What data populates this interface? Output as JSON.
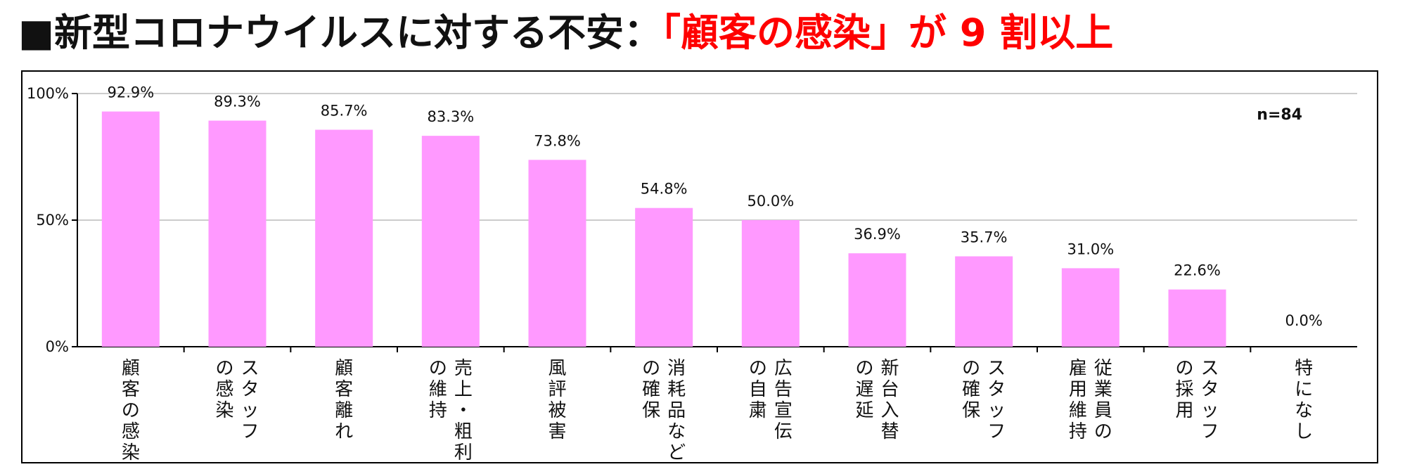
{
  "title": {
    "prefix": "■新型コロナウイルスに対する不安：",
    "accent": "「顧客の感染」が 9 割以上"
  },
  "colors": {
    "bar": "#ff99ff",
    "accent": "#ff0000",
    "grid": "#cccccc",
    "axis": "#000000",
    "text": "#111111"
  },
  "chart_data": {
    "type": "bar",
    "categories": [
      "顧客の感染",
      "スタッフの感染",
      "顧客離れ",
      "売上・粗利の維持",
      "風評被害",
      "消耗品などの確保",
      "広告宣伝の自粛",
      "新台入替の遅延",
      "スタッフの確保",
      "従業員の雇用維持",
      "スタッフの採用",
      "特になし"
    ],
    "category_lines": [
      [
        "顧客の感染"
      ],
      [
        "スタッフ",
        "の感染"
      ],
      [
        "顧客離れ"
      ],
      [
        "売上・粗利",
        "の維持"
      ],
      [
        "風評被害"
      ],
      [
        "消耗品など",
        "の確保"
      ],
      [
        "広告宣伝",
        "の自粛"
      ],
      [
        "新台入替",
        "の遅延"
      ],
      [
        "スタッフ",
        "の確保"
      ],
      [
        "従業員の",
        "雇用維持"
      ],
      [
        "スタッフ",
        "の採用"
      ],
      [
        "特になし"
      ]
    ],
    "values": [
      92.9,
      89.3,
      85.7,
      83.3,
      73.8,
      54.8,
      50.0,
      36.9,
      35.7,
      31.0,
      22.6,
      0.0
    ],
    "value_labels": [
      "92.9%",
      "89.3%",
      "85.7%",
      "83.3%",
      "73.8%",
      "54.8%",
      "50.0%",
      "36.9%",
      "35.7%",
      "31.0%",
      "22.6%",
      "0.0%"
    ],
    "y_ticks": [
      0,
      50,
      100
    ],
    "y_tick_labels": [
      "0%",
      "50%",
      "100%"
    ],
    "ylim": [
      0,
      100
    ],
    "grid": true,
    "sample_label": "n=84"
  }
}
